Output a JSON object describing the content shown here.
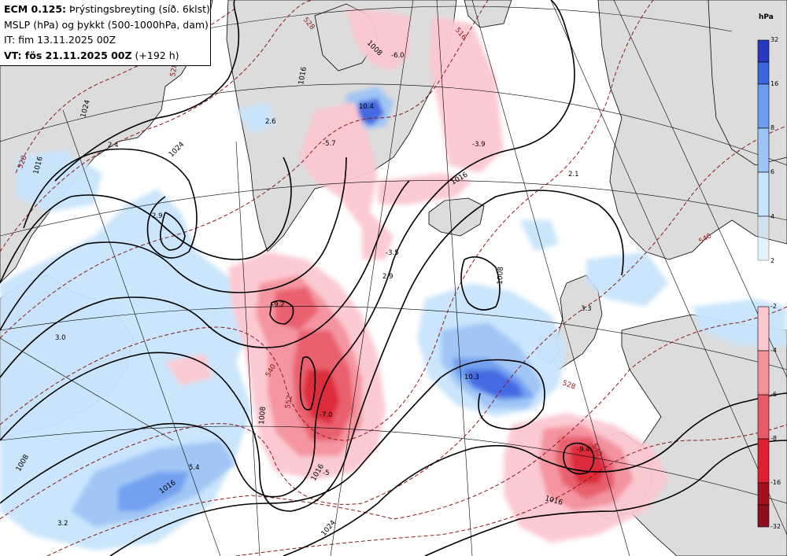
{
  "header": {
    "line1_bold": "ECM 0.125:",
    "line1_rest": " Þrýstingsbreyting (síð. 6klst)",
    "line2": "MSLP (hPa) og þykkt (500-1000hPa, dam)",
    "line3": "IT: fim 13.11.2025 00Z",
    "line4_bold": "VT: fös 21.11.2025 00Z",
    "line4_rest": " (+192 h)"
  },
  "legend": {
    "unit": "hPa",
    "positive": [
      {
        "value": 32,
        "color": "#2838c0"
      },
      {
        "value": 16,
        "color": "#3c64e0"
      },
      {
        "value": 8,
        "color": "#6c9cf0"
      },
      {
        "value": 6,
        "color": "#9cc4f6"
      },
      {
        "value": 4,
        "color": "#c8e4fc"
      },
      {
        "value": 2,
        "color": "#ffffff"
      }
    ],
    "negative": [
      {
        "value": -2,
        "color": "#fcc8d0"
      },
      {
        "value": -4,
        "color": "#f4909c"
      },
      {
        "value": -6,
        "color": "#e85868"
      },
      {
        "value": -8,
        "color": "#dc2030"
      },
      {
        "value": -16,
        "color": "#a81020"
      },
      {
        "value": -32,
        "color": "#ffffff"
      }
    ]
  },
  "colors": {
    "land": "#dcdcdc",
    "isobar": "#000000",
    "thickness": "#8b1a1a"
  },
  "map": {
    "change_values": [
      "-6.0",
      "10.4",
      "-5.7",
      "2.6",
      "2.4",
      "2.9",
      "-3.9",
      "2.1",
      "-3.5",
      "2.9",
      "-9.2",
      "3.0",
      "-7.0",
      "10.3",
      "3.3",
      "5.4",
      "3.2",
      "-5",
      "-9.4"
    ],
    "isobar_labels": [
      "1016",
      "1024",
      "1024",
      "1016",
      "1016",
      "1008",
      "1016",
      "1008",
      "1024",
      "1016",
      "1016",
      "1008",
      "1008"
    ],
    "thickness_labels": [
      "528",
      "516",
      "528",
      "540",
      "552",
      "528",
      "540",
      "528",
      "540"
    ]
  }
}
